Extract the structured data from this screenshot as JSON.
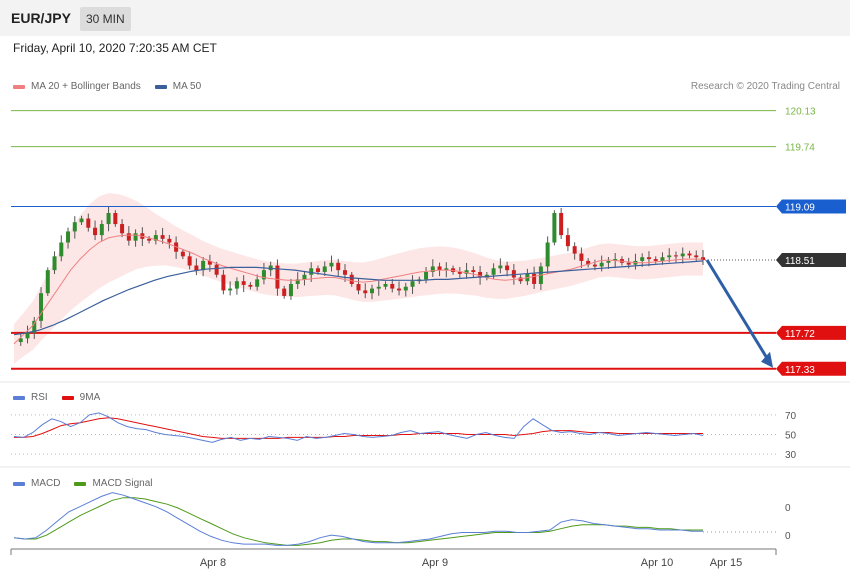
{
  "header": {
    "symbol": "EUR/JPY",
    "timeframe": "30 MIN"
  },
  "datetime": "Friday, April 10, 2020 7:20:35 AM CET",
  "legend_main": [
    {
      "label": "MA 20 + Bollinger Bands",
      "color": "#f08080"
    },
    {
      "label": "MA 50",
      "color": "#3a5f9a"
    }
  ],
  "credit": "Research © 2020 Trading Central",
  "legend_rsi": [
    {
      "label": "RSI",
      "color": "#5b7fd6"
    },
    {
      "label": "9MA",
      "color": "#e01010"
    }
  ],
  "legend_macd": [
    {
      "label": "MACD",
      "color": "#5b7fd6"
    },
    {
      "label": "MACD Signal",
      "color": "#4e9a1a"
    }
  ],
  "chart_data": [
    {
      "type": "candlestick",
      "ylim": [
        117.23,
        120.3
      ],
      "x_ticks": [
        "Apr 8",
        "Apr 9",
        "Apr 10",
        "Apr 15"
      ],
      "current_price": 118.51,
      "levels": [
        {
          "label": "120.13",
          "value": 120.13,
          "color": "#7ab648",
          "kind": "resistance-thin"
        },
        {
          "label": "119.74",
          "value": 119.74,
          "color": "#7ab648",
          "kind": "resistance-thin"
        },
        {
          "label": "119.09",
          "value": 119.09,
          "color": "#1a5fd0",
          "kind": "pivot"
        },
        {
          "label": "118.51",
          "value": 118.51,
          "color": "#333333",
          "kind": "current"
        },
        {
          "label": "117.72",
          "value": 117.72,
          "color": "#e01010",
          "kind": "support"
        },
        {
          "label": "117.33",
          "value": 117.33,
          "color": "#e01010",
          "kind": "support"
        }
      ],
      "projection": {
        "from_value": 118.51,
        "to_value": 117.33,
        "color": "#2e5fa6"
      },
      "price_path": [
        117.62,
        117.66,
        117.72,
        117.85,
        118.15,
        118.4,
        118.55,
        118.7,
        118.82,
        118.92,
        118.96,
        118.86,
        118.78,
        118.9,
        119.02,
        118.9,
        118.8,
        118.72,
        118.8,
        118.74,
        118.72,
        118.78,
        118.74,
        118.7,
        118.6,
        118.55,
        118.45,
        118.4,
        118.5,
        118.46,
        118.35,
        118.18,
        118.2,
        118.28,
        118.24,
        118.22,
        118.3,
        118.4,
        118.45,
        118.2,
        118.12,
        118.25,
        118.3,
        118.35,
        118.42,
        118.38,
        118.44,
        118.48,
        118.4,
        118.35,
        118.25,
        118.18,
        118.15,
        118.2,
        118.22,
        118.25,
        118.2,
        118.18,
        118.22,
        118.28,
        118.3,
        118.38,
        118.44,
        118.4,
        118.42,
        118.38,
        118.36,
        118.4,
        118.38,
        118.32,
        118.35,
        118.42,
        118.45,
        118.4,
        118.32,
        118.28,
        118.36,
        118.25,
        118.44,
        118.7,
        119.02,
        118.78,
        118.66,
        118.58,
        118.5,
        118.46,
        118.44,
        118.48,
        118.5,
        118.52,
        118.48,
        118.46,
        118.5,
        118.54,
        118.52,
        118.5,
        118.54,
        118.56,
        118.55,
        118.58,
        118.56,
        118.54,
        118.51
      ],
      "ma20": [
        117.6,
        117.7,
        117.8,
        117.95,
        118.1,
        118.25,
        118.4,
        118.52,
        118.62,
        118.7,
        118.75,
        118.77,
        118.78,
        118.78,
        118.76,
        118.73,
        118.7,
        118.66,
        118.62,
        118.58,
        118.53,
        118.49,
        118.45,
        118.42,
        118.39,
        118.36,
        118.33,
        118.31,
        118.3,
        118.29,
        118.29,
        118.3,
        118.31,
        118.32,
        118.32,
        118.3,
        118.28,
        118.27,
        118.28,
        118.3,
        118.32,
        118.34,
        118.36,
        118.38,
        118.39,
        118.4,
        118.4,
        118.39,
        118.37,
        118.35,
        118.32,
        118.3,
        118.29,
        118.3,
        118.31,
        118.33,
        118.35,
        118.37,
        118.39,
        118.41,
        118.44,
        118.47,
        118.5,
        118.51,
        118.5,
        118.49,
        118.48,
        118.48,
        118.49,
        118.5,
        118.51,
        118.52,
        118.52,
        118.52
      ],
      "ma50": [
        117.7,
        117.72,
        117.75,
        117.8,
        117.86,
        117.93,
        118.0,
        118.07,
        118.13,
        118.19,
        118.24,
        118.29,
        118.33,
        118.36,
        118.39,
        118.41,
        118.42,
        118.43,
        118.43,
        118.43,
        118.42,
        118.41,
        118.4,
        118.38,
        118.36,
        118.34,
        118.32,
        118.31,
        118.3,
        118.29,
        118.29,
        118.29,
        118.29,
        118.3,
        118.3,
        118.31,
        118.32,
        118.33,
        118.34,
        118.35,
        118.36,
        118.37,
        118.38,
        118.39,
        118.4,
        118.41,
        118.42,
        118.43,
        118.44,
        118.45,
        118.46,
        118.47,
        118.48,
        118.49,
        118.5
      ]
    },
    {
      "type": "line",
      "name": "RSI panel",
      "ylim": [
        20,
        80
      ],
      "y_ticks": [
        70,
        50,
        30
      ],
      "series": [
        {
          "name": "RSI",
          "color": "#5b7fd6",
          "values": [
            48,
            47,
            52,
            60,
            66,
            63,
            58,
            62,
            70,
            72,
            68,
            62,
            58,
            56,
            55,
            52,
            50,
            49,
            48,
            46,
            44,
            42,
            45,
            47,
            44,
            46,
            45,
            48,
            47,
            46,
            44,
            48,
            46,
            47,
            49,
            51,
            50,
            48,
            47,
            48,
            49,
            52,
            54,
            51,
            52,
            53,
            50,
            48,
            46,
            50,
            52,
            49,
            47,
            46,
            58,
            66,
            60,
            54,
            52,
            53,
            51,
            50,
            52,
            51,
            49,
            50,
            51,
            52,
            51,
            50,
            49,
            50,
            51,
            49
          ]
        },
        {
          "name": "9MA",
          "color": "#e01010",
          "values": [
            47,
            47,
            48,
            51,
            55,
            59,
            61,
            62,
            64,
            66,
            67,
            66,
            64,
            62,
            60,
            58,
            56,
            54,
            52,
            50,
            48,
            47,
            46,
            46,
            46,
            46,
            46,
            46,
            46,
            47,
            47,
            47,
            47,
            47,
            48,
            48,
            49,
            49,
            49,
            49,
            49,
            50,
            50,
            51,
            51,
            51,
            51,
            51,
            50,
            50,
            50,
            50,
            50,
            49,
            50,
            51,
            53,
            54,
            54,
            54,
            53,
            52,
            52,
            52,
            51,
            51,
            51,
            51,
            51,
            51,
            51,
            51,
            51,
            51
          ]
        }
      ]
    },
    {
      "type": "line",
      "name": "MACD panel",
      "y_ticks": [
        0,
        0
      ],
      "series": [
        {
          "name": "MACD",
          "color": "#5b7fd6",
          "values": [
            -0.02,
            -0.03,
            -0.02,
            0.04,
            0.11,
            0.18,
            0.22,
            0.26,
            0.3,
            0.33,
            0.31,
            0.28,
            0.25,
            0.22,
            0.18,
            0.13,
            0.08,
            0.03,
            -0.01,
            -0.04,
            -0.06,
            -0.07,
            -0.07,
            -0.07,
            -0.08,
            -0.08,
            -0.07,
            -0.05,
            -0.02,
            0.0,
            -0.01,
            -0.03,
            -0.05,
            -0.06,
            -0.06,
            -0.06,
            -0.05,
            -0.04,
            -0.03,
            -0.01,
            0.01,
            0.02,
            0.02,
            0.02,
            0.03,
            0.03,
            0.02,
            0.02,
            0.03,
            0.04,
            0.1,
            0.12,
            0.11,
            0.09,
            0.08,
            0.07,
            0.06,
            0.05,
            0.05,
            0.04,
            0.04,
            0.04,
            0.03,
            0.03
          ]
        },
        {
          "name": "MACD Signal",
          "color": "#4e9a1a",
          "values": [
            -0.02,
            -0.03,
            -0.03,
            0.0,
            0.05,
            0.1,
            0.15,
            0.19,
            0.23,
            0.27,
            0.29,
            0.29,
            0.28,
            0.26,
            0.24,
            0.21,
            0.17,
            0.13,
            0.09,
            0.05,
            0.01,
            -0.02,
            -0.04,
            -0.06,
            -0.07,
            -0.08,
            -0.08,
            -0.07,
            -0.06,
            -0.04,
            -0.03,
            -0.03,
            -0.04,
            -0.05,
            -0.05,
            -0.06,
            -0.06,
            -0.05,
            -0.04,
            -0.03,
            -0.02,
            -0.01,
            0.0,
            0.01,
            0.02,
            0.02,
            0.02,
            0.02,
            0.02,
            0.03,
            0.05,
            0.07,
            0.08,
            0.08,
            0.08,
            0.07,
            0.07,
            0.06,
            0.06,
            0.05,
            0.05,
            0.04,
            0.04,
            0.04
          ]
        }
      ]
    }
  ]
}
